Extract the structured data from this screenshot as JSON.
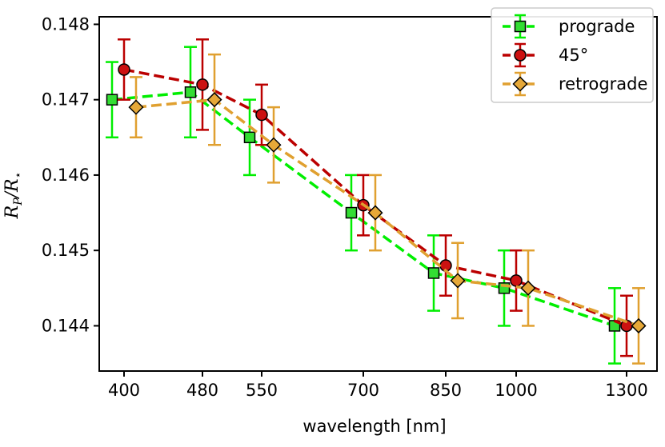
{
  "chart_data": {
    "type": "line",
    "xlabel": "wavelength [nm]",
    "ylabel": "R_P/R_⋆",
    "ylabel_main": "R",
    "ylabel_sub1": "P",
    "ylabel_slash": "/R",
    "ylabel_sub2": "⋆",
    "categories": [
      "400",
      "480",
      "550",
      "700",
      "850",
      "1000",
      "1300"
    ],
    "ylim": [
      0.1434,
      0.1481
    ],
    "yticks": [
      0.144,
      0.145,
      0.146,
      0.147,
      0.148
    ],
    "ytick_labels": [
      "0.144",
      "0.145",
      "0.146",
      "0.147",
      "0.148"
    ],
    "grid": false,
    "legend_position": "top-right",
    "series": [
      {
        "name": "prograde",
        "marker": "square",
        "line_color": "#00ee00",
        "marker_color": "#33dd33",
        "offset": -1,
        "values": [
          0.147,
          0.1471,
          0.1465,
          0.1455,
          0.1447,
          0.1445,
          0.144
        ],
        "errors": [
          0.0005,
          0.0006,
          0.0005,
          0.0005,
          0.0005,
          0.0005,
          0.0005
        ]
      },
      {
        "name": "45°",
        "marker": "circle",
        "line_color": "#bb0000",
        "marker_color": "#cc1111",
        "offset": 0,
        "values": [
          0.1474,
          0.1472,
          0.1468,
          0.1456,
          0.1448,
          0.1446,
          0.144
        ],
        "errors": [
          0.0004,
          0.0006,
          0.0004,
          0.0004,
          0.0004,
          0.0004,
          0.0004
        ]
      },
      {
        "name": "retrograde",
        "marker": "diamond",
        "line_color": "#e0a030",
        "marker_color": "#e6a838",
        "offset": 1,
        "values": [
          0.1469,
          0.147,
          0.1464,
          0.1455,
          0.1446,
          0.1445,
          0.144
        ],
        "errors": [
          0.0004,
          0.0006,
          0.0005,
          0.0005,
          0.0005,
          0.0005,
          0.0005
        ]
      }
    ]
  }
}
